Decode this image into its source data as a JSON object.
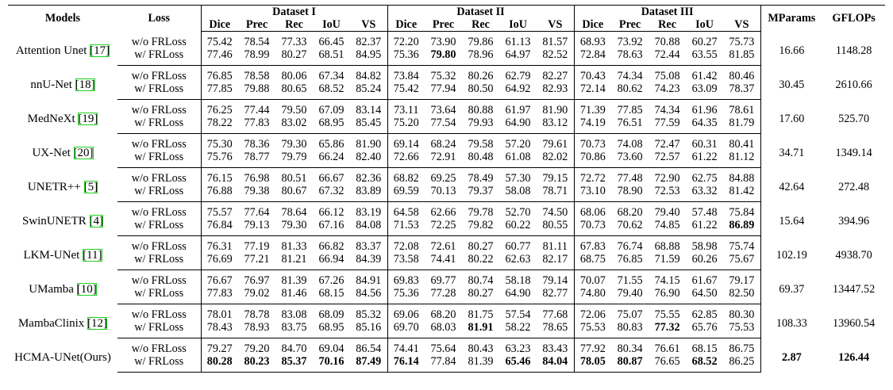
{
  "header": {
    "models": "Models",
    "loss": "Loss",
    "datasets": [
      "Dataset I",
      "Dataset II",
      "Dataset III"
    ],
    "metrics": [
      "Dice",
      "Prec",
      "Rec",
      "IoU",
      "VS"
    ],
    "mparams": "MParams",
    "gflops": "GFLOPs"
  },
  "rows": [
    {
      "model": "Attention Unet",
      "ref": "[17]",
      "mparams": "16.66",
      "gflops": "1148.28",
      "losses": [
        {
          "loss": "w/o FRLoss",
          "values": [
            "75.42",
            "78.54",
            "77.33",
            "66.45",
            "82.37",
            "72.20",
            "73.90",
            "79.86",
            "61.13",
            "81.57",
            "68.93",
            "73.92",
            "70.88",
            "60.27",
            "75.73"
          ]
        },
        {
          "loss": "w/ FRLoss",
          "values": [
            "77.46",
            "78.99",
            "80.27",
            "68.51",
            "84.95",
            "75.36",
            "79.80",
            "78.96",
            "64.97",
            "82.52",
            "72.84",
            "78.63",
            "72.44",
            "63.55",
            "81.85"
          ],
          "bold": [
            6
          ]
        }
      ]
    },
    {
      "model": "nnU-Net",
      "ref": "[18]",
      "mparams": "30.45",
      "gflops": "2610.66",
      "losses": [
        {
          "loss": "w/o FRLoss",
          "values": [
            "76.85",
            "78.58",
            "80.06",
            "67.34",
            "84.82",
            "73.84",
            "75.32",
            "80.26",
            "62.79",
            "82.27",
            "70.43",
            "74.34",
            "75.08",
            "61.42",
            "80.46"
          ]
        },
        {
          "loss": "w/ FRLoss",
          "values": [
            "77.85",
            "79.88",
            "80.65",
            "68.52",
            "85.24",
            "75.42",
            "77.94",
            "80.50",
            "64.92",
            "82.93",
            "72.14",
            "80.62",
            "74.23",
            "63.09",
            "78.37"
          ]
        }
      ]
    },
    {
      "model": "MedNeXt",
      "ref": "[19]",
      "mparams": "17.60",
      "gflops": "525.70",
      "losses": [
        {
          "loss": "w/o FRLoss",
          "values": [
            "76.25",
            "77.44",
            "79.50",
            "67.09",
            "83.14",
            "73.11",
            "73.64",
            "80.88",
            "61.97",
            "81.90",
            "71.39",
            "77.85",
            "74.34",
            "61.96",
            "78.61"
          ]
        },
        {
          "loss": "w/ FRLoss",
          "values": [
            "78.22",
            "77.83",
            "83.02",
            "68.95",
            "85.45",
            "75.20",
            "77.54",
            "79.93",
            "64.90",
            "83.12",
            "74.19",
            "76.51",
            "77.59",
            "64.35",
            "81.79"
          ]
        }
      ]
    },
    {
      "model": "UX-Net",
      "ref": "[20]",
      "mparams": "34.71",
      "gflops": "1349.14",
      "losses": [
        {
          "loss": "w/o FRLoss",
          "values": [
            "75.30",
            "78.36",
            "79.30",
            "65.86",
            "81.90",
            "69.14",
            "68.24",
            "79.58",
            "57.20",
            "79.61",
            "70.73",
            "74.08",
            "72.47",
            "60.31",
            "80.41"
          ]
        },
        {
          "loss": "w/ FRLoss",
          "values": [
            "75.76",
            "78.77",
            "79.79",
            "66.24",
            "82.40",
            "72.66",
            "72.91",
            "80.48",
            "61.08",
            "82.02",
            "70.86",
            "73.60",
            "72.57",
            "61.22",
            "81.12"
          ]
        }
      ]
    },
    {
      "model": "UNETR++",
      "ref": "[5]",
      "mparams": "42.64",
      "gflops": "272.48",
      "losses": [
        {
          "loss": "w/o FRLoss",
          "values": [
            "76.15",
            "76.98",
            "80.51",
            "66.67",
            "82.36",
            "68.82",
            "69.25",
            "78.49",
            "57.30",
            "79.15",
            "72.72",
            "77.48",
            "72.90",
            "62.75",
            "84.88"
          ]
        },
        {
          "loss": "w/ FRLoss",
          "values": [
            "76.88",
            "79.38",
            "80.67",
            "67.32",
            "83.89",
            "69.59",
            "70.13",
            "79.37",
            "58.08",
            "78.71",
            "73.10",
            "78.90",
            "72.53",
            "63.32",
            "81.42"
          ]
        }
      ]
    },
    {
      "model": "SwinUNETR",
      "ref": "[4]",
      "mparams": "15.64",
      "gflops": "394.96",
      "losses": [
        {
          "loss": "w/o FRLoss",
          "values": [
            "75.57",
            "77.64",
            "78.64",
            "66.12",
            "83.19",
            "64.58",
            "62.66",
            "79.78",
            "52.70",
            "74.50",
            "68.06",
            "68.20",
            "79.40",
            "57.48",
            "75.84"
          ]
        },
        {
          "loss": "w/ FRLoss",
          "values": [
            "76.84",
            "79.13",
            "79.30",
            "67.16",
            "84.08",
            "71.53",
            "72.25",
            "79.82",
            "60.22",
            "80.55",
            "70.73",
            "70.62",
            "74.85",
            "61.22",
            "86.89"
          ],
          "bold": [
            14
          ]
        }
      ]
    },
    {
      "model": "LKM-UNet",
      "ref": "[11]",
      "mparams": "102.19",
      "gflops": "4938.70",
      "losses": [
        {
          "loss": "w/o FRLoss",
          "values": [
            "76.31",
            "77.19",
            "81.33",
            "66.82",
            "83.37",
            "72.08",
            "72.61",
            "80.27",
            "60.77",
            "81.11",
            "67.83",
            "76.74",
            "68.88",
            "58.98",
            "75.74"
          ]
        },
        {
          "loss": "w/ FRLoss",
          "values": [
            "76.69",
            "77.21",
            "81.21",
            "66.94",
            "84.39",
            "73.58",
            "74.41",
            "80.22",
            "62.63",
            "82.17",
            "68.75",
            "76.85",
            "71.59",
            "60.26",
            "75.67"
          ]
        }
      ]
    },
    {
      "model": "UMamba",
      "ref": "[10]",
      "mparams": "69.37",
      "gflops": "13447.52",
      "losses": [
        {
          "loss": "w/o FRLoss",
          "values": [
            "76.67",
            "76.97",
            "81.39",
            "67.26",
            "84.91",
            "69.83",
            "69.77",
            "80.74",
            "58.18",
            "79.14",
            "70.07",
            "71.55",
            "74.15",
            "61.67",
            "79.17"
          ]
        },
        {
          "loss": "w/ FRLoss",
          "values": [
            "77.83",
            "79.02",
            "81.46",
            "68.15",
            "84.56",
            "75.36",
            "77.28",
            "80.27",
            "64.90",
            "82.77",
            "74.80",
            "79.40",
            "76.90",
            "64.50",
            "82.50"
          ]
        }
      ]
    },
    {
      "model": "MambaClinix",
      "ref": "[12]",
      "mparams": "108.33",
      "gflops": "13960.54",
      "losses": [
        {
          "loss": "w/o FRLoss",
          "values": [
            "78.01",
            "78.78",
            "83.08",
            "68.09",
            "85.32",
            "69.06",
            "68.20",
            "81.75",
            "57.54",
            "77.68",
            "72.06",
            "75.07",
            "75.55",
            "62.85",
            "80.30"
          ]
        },
        {
          "loss": "w/ FRLoss",
          "values": [
            "78.43",
            "78.93",
            "83.75",
            "68.95",
            "85.16",
            "69.70",
            "68.03",
            "81.91",
            "58.22",
            "78.65",
            "75.53",
            "80.83",
            "77.32",
            "65.76",
            "75.53"
          ],
          "bold": [
            7,
            12
          ]
        }
      ]
    },
    {
      "model": "HCMA-UNet(Ours)",
      "mparams": "2.87",
      "gflops": "126.44",
      "bold_cost": true,
      "losses": [
        {
          "loss": "w/o FRLoss",
          "values": [
            "79.27",
            "79.20",
            "84.70",
            "69.04",
            "86.54",
            "74.41",
            "75.64",
            "80.43",
            "63.23",
            "83.43",
            "77.92",
            "80.34",
            "76.61",
            "68.15",
            "86.75"
          ]
        },
        {
          "loss": "w/ FRLoss",
          "values": [
            "80.28",
            "80.23",
            "85.37",
            "70.16",
            "87.49",
            "76.14",
            "77.84",
            "81.39",
            "65.46",
            "84.04",
            "78.05",
            "80.87",
            "76.65",
            "68.52",
            "86.25"
          ],
          "bold": [
            0,
            1,
            2,
            3,
            4,
            5,
            8,
            9,
            10,
            11,
            13
          ]
        }
      ]
    }
  ]
}
